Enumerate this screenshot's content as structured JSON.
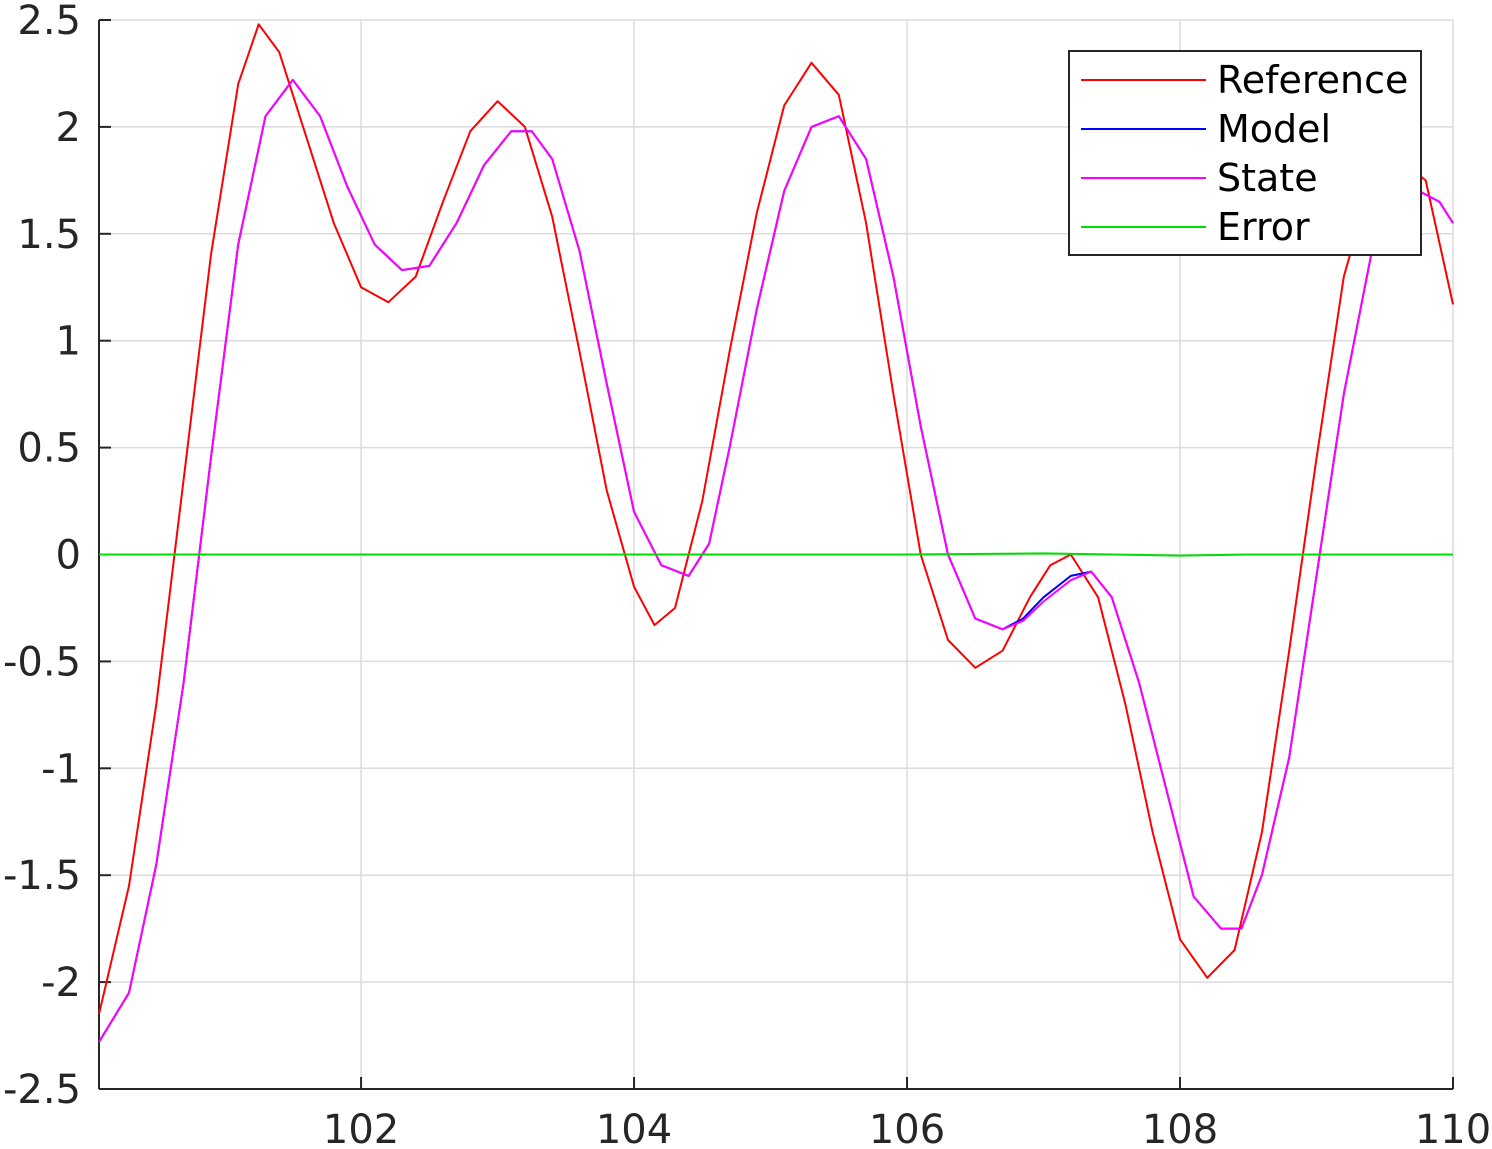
{
  "chart_data": {
    "type": "line",
    "title": "",
    "xlabel": "",
    "ylabel": "",
    "xlim": [
      100.08,
      110
    ],
    "ylim": [
      -2.5,
      2.5
    ],
    "grid": true,
    "legend_position": "top-right",
    "xticks": [
      102,
      104,
      106,
      108,
      110
    ],
    "xtick_labels": [
      "102",
      "104",
      "106",
      "108",
      "110"
    ],
    "yticks": [
      2.5,
      2,
      1.5,
      1,
      0.5,
      0,
      -0.5,
      -1,
      -1.5,
      -2,
      -2.5
    ],
    "ytick_labels": [
      "2.5",
      "2",
      "1.5",
      "1",
      "0.5",
      "0",
      "-0.5",
      "-1",
      "-1.5",
      "-2",
      "-2.5"
    ],
    "series": [
      {
        "name": "Reference",
        "color": "#ff0000",
        "x": [
          100.08,
          100.3,
          100.5,
          100.7,
          100.9,
          101.1,
          101.25,
          101.4,
          101.6,
          101.8,
          102.0,
          102.2,
          102.4,
          102.6,
          102.8,
          103.0,
          103.2,
          103.4,
          103.6,
          103.8,
          104.0,
          104.15,
          104.3,
          104.5,
          104.7,
          104.9,
          105.1,
          105.3,
          105.5,
          105.7,
          105.9,
          106.1,
          106.3,
          106.5,
          106.7,
          106.9,
          107.05,
          107.2,
          107.4,
          107.6,
          107.8,
          108.0,
          108.2,
          108.4,
          108.6,
          108.8,
          109.0,
          109.2,
          109.4,
          109.6,
          109.8,
          110.0
        ],
        "values": [
          -2.15,
          -1.55,
          -0.7,
          0.35,
          1.4,
          2.2,
          2.48,
          2.35,
          1.95,
          1.55,
          1.25,
          1.18,
          1.3,
          1.65,
          1.98,
          2.12,
          2.0,
          1.58,
          0.95,
          0.3,
          -0.15,
          -0.33,
          -0.25,
          0.25,
          0.95,
          1.6,
          2.1,
          2.3,
          2.15,
          1.55,
          0.75,
          0.0,
          -0.4,
          -0.53,
          -0.45,
          -0.2,
          -0.05,
          0.0,
          -0.2,
          -0.7,
          -1.3,
          -1.8,
          -1.98,
          -1.85,
          -1.3,
          -0.45,
          0.45,
          1.3,
          1.75,
          1.85,
          1.75,
          1.17
        ]
      },
      {
        "name": "Model",
        "color": "#0000ff",
        "x": [
          100.08,
          100.3,
          100.5,
          100.7,
          100.9,
          101.1,
          101.3,
          101.5,
          101.7,
          101.9,
          102.1,
          102.3,
          102.5,
          102.7,
          102.9,
          103.1,
          103.25,
          103.4,
          103.6,
          103.8,
          104.0,
          104.2,
          104.4,
          104.55,
          104.7,
          104.9,
          105.1,
          105.3,
          105.5,
          105.7,
          105.9,
          106.1,
          106.3,
          106.5,
          106.7,
          106.85,
          107.0,
          107.2,
          107.35,
          107.5,
          107.7,
          107.9,
          108.1,
          108.3,
          108.45,
          108.6,
          108.8,
          109.0,
          109.2,
          109.4,
          109.6,
          109.75,
          109.9,
          110.0
        ],
        "values": [
          -2.28,
          -2.05,
          -1.45,
          -0.6,
          0.45,
          1.45,
          2.05,
          2.22,
          2.05,
          1.72,
          1.45,
          1.33,
          1.35,
          1.55,
          1.82,
          1.98,
          1.98,
          1.85,
          1.42,
          0.8,
          0.2,
          -0.05,
          -0.1,
          0.05,
          0.5,
          1.15,
          1.7,
          2.0,
          2.05,
          1.85,
          1.3,
          0.6,
          0.0,
          -0.3,
          -0.35,
          -0.3,
          -0.2,
          -0.1,
          -0.08,
          -0.2,
          -0.6,
          -1.1,
          -1.6,
          -1.75,
          -1.75,
          -1.5,
          -0.95,
          -0.1,
          0.75,
          1.4,
          1.65,
          1.7,
          1.65,
          1.55
        ]
      },
      {
        "name": "State",
        "color": "#ff00ff",
        "x": [
          100.08,
          100.3,
          100.5,
          100.7,
          100.9,
          101.1,
          101.3,
          101.5,
          101.7,
          101.9,
          102.1,
          102.3,
          102.5,
          102.7,
          102.9,
          103.1,
          103.25,
          103.4,
          103.6,
          103.8,
          104.0,
          104.2,
          104.4,
          104.55,
          104.7,
          104.9,
          105.1,
          105.3,
          105.5,
          105.7,
          105.9,
          106.1,
          106.3,
          106.5,
          106.7,
          106.85,
          107.0,
          107.2,
          107.35,
          107.5,
          107.7,
          107.9,
          108.1,
          108.3,
          108.45,
          108.6,
          108.8,
          109.0,
          109.2,
          109.4,
          109.6,
          109.75,
          109.9,
          110.0
        ],
        "values": [
          -2.28,
          -2.05,
          -1.45,
          -0.6,
          0.45,
          1.45,
          2.05,
          2.22,
          2.05,
          1.72,
          1.45,
          1.33,
          1.35,
          1.55,
          1.82,
          1.98,
          1.98,
          1.85,
          1.42,
          0.8,
          0.2,
          -0.05,
          -0.1,
          0.05,
          0.5,
          1.15,
          1.7,
          2.0,
          2.05,
          1.85,
          1.3,
          0.6,
          0.0,
          -0.3,
          -0.35,
          -0.31,
          -0.22,
          -0.12,
          -0.08,
          -0.2,
          -0.6,
          -1.1,
          -1.6,
          -1.75,
          -1.75,
          -1.5,
          -0.95,
          -0.1,
          0.75,
          1.4,
          1.65,
          1.7,
          1.65,
          1.55
        ]
      },
      {
        "name": "Error",
        "color": "#00dd00",
        "x": [
          100.08,
          101.0,
          102.0,
          103.0,
          104.0,
          105.0,
          106.0,
          107.0,
          107.5,
          108.0,
          108.5,
          109.0,
          110.0
        ],
        "values": [
          0.0,
          0.0,
          0.0,
          0.0,
          0.0,
          0.0,
          0.0,
          0.005,
          0.0,
          -0.005,
          0.0,
          0.0,
          0.0
        ]
      }
    ]
  }
}
